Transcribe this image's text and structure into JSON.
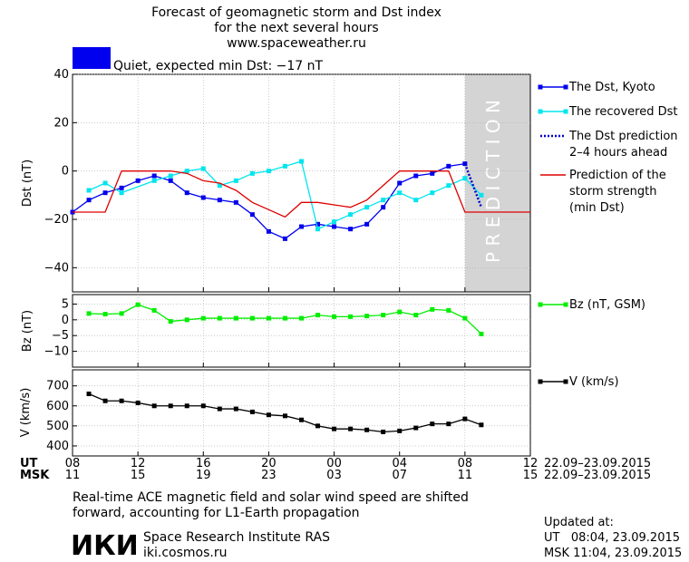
{
  "header": {
    "title_line1": "Forecast of geomagnetic storm and Dst index",
    "title_line2": "for the next several hours",
    "url": "www.spaceweather.ru",
    "status_text": "Quiet, expected min Dst: −17 nT",
    "status_color": "#0000ee"
  },
  "prediction_band_label": "P R E D I C T I O N",
  "legends": {
    "dst": [
      {
        "key": "kyoto",
        "label_lines": [
          "The Dst, Kyoto"
        ],
        "color": "#0000ee"
      },
      {
        "key": "recovered",
        "label_lines": [
          "The recovered Dst"
        ],
        "color": "#00e5ee"
      },
      {
        "key": "dst_pred",
        "label_lines": [
          "The Dst prediction",
          "2–4 hours ahead"
        ],
        "color": "#0000cc"
      },
      {
        "key": "storm",
        "label_lines": [
          "Prediction of the",
          "storm strength",
          "(min Dst)"
        ],
        "color": "#dd0000"
      }
    ],
    "bz": {
      "label": "Bz (nT, GSM)",
      "color": "#00ee00"
    },
    "v": {
      "label": "V (km/s)",
      "color": "#000000"
    }
  },
  "time_axis": {
    "ut_label": "UT",
    "msk_label": "MSK",
    "ut_ticks": [
      "08",
      "12",
      "16",
      "20",
      "00",
      "04",
      "08",
      "12"
    ],
    "msk_ticks": [
      "11",
      "15",
      "19",
      "23",
      "03",
      "07",
      "11",
      "15"
    ],
    "date_range_ut": "22.09–23.09.2015",
    "date_range_msk": "22.09–23.09.2015"
  },
  "footer": {
    "note_line1": "Real-time ACE magnetic field and solar wind speed are shifted",
    "note_line2": "forward, accounting for L1-Earth propagation",
    "logo_text": "ИКИ",
    "institute": "Space Research Institute RAS",
    "site": "iki.cosmos.ru",
    "updated_label": "Updated at:",
    "updated_ut": "UT   08:04, 23.09.2015",
    "updated_msk": "MSK 11:04, 23.09.2015"
  },
  "chart_data": [
    {
      "type": "line",
      "panel": "dst",
      "ylabel": "Dst (nT)",
      "xlim": [
        0,
        28
      ],
      "ylim": [
        -50,
        40
      ],
      "yticks": [
        -40,
        -20,
        0,
        20,
        40
      ],
      "prediction_band": [
        24,
        28
      ],
      "series": [
        {
          "key": "kyoto",
          "name": "The Dst, Kyoto",
          "color": "#0000ee",
          "marker": "square",
          "x": [
            0,
            1,
            2,
            3,
            4,
            5,
            6,
            7,
            8,
            9,
            10,
            11,
            12,
            13,
            14,
            15,
            16,
            17,
            18,
            19,
            20,
            21,
            22,
            23,
            24
          ],
          "y": [
            -17,
            -12,
            -9,
            -7,
            -4,
            -2,
            -4,
            -9,
            -11,
            -12,
            -13,
            -18,
            -25,
            -28,
            -23,
            -22,
            -23,
            -24,
            -22,
            -15,
            -5,
            -2,
            -1,
            2,
            3
          ]
        },
        {
          "key": "recovered",
          "name": "The recovered Dst",
          "color": "#00e5ee",
          "marker": "square",
          "x": [
            1,
            2,
            3,
            5,
            6,
            7,
            8,
            9,
            10,
            11,
            12,
            13,
            14,
            15,
            16,
            17,
            18,
            19,
            20,
            21,
            22,
            23,
            24,
            25
          ],
          "y": [
            -8,
            -5,
            -9,
            -4,
            -2,
            0,
            1,
            -6,
            -4,
            -1,
            0,
            2,
            4,
            -24,
            -21,
            -18,
            -15,
            -12,
            -9,
            -12,
            -9,
            -6,
            -3,
            -10
          ]
        },
        {
          "key": "dst_pred",
          "name": "The Dst prediction 2–4 hours ahead",
          "color": "#0000cc",
          "dotted": true,
          "x": [
            24,
            24.5,
            25
          ],
          "y": [
            3,
            -6,
            -15
          ]
        },
        {
          "key": "storm",
          "name": "Prediction of the storm strength (min Dst)",
          "color": "#dd0000",
          "x": [
            0,
            2,
            3,
            4,
            5,
            6,
            7,
            8,
            9,
            10,
            11,
            12,
            13,
            14,
            15,
            16,
            17,
            18,
            19,
            20,
            21,
            22,
            23,
            24,
            25,
            26,
            27,
            28
          ],
          "y": [
            -17,
            -17,
            0,
            0,
            0,
            0,
            -1,
            -4,
            -5,
            -8,
            -13,
            -16,
            -19,
            -13,
            -13,
            -14,
            -15,
            -12,
            -6,
            0,
            0,
            0,
            0,
            -17,
            -17,
            -17,
            -17,
            -17
          ]
        }
      ]
    },
    {
      "type": "line",
      "panel": "bz",
      "ylabel": "Bz (nT)",
      "xlim": [
        0,
        28
      ],
      "ylim": [
        -15,
        8
      ],
      "yticks": [
        -10,
        -5,
        0,
        5
      ],
      "series": [
        {
          "key": "bz",
          "name": "Bz (nT, GSM)",
          "color": "#00ee00",
          "marker": "square",
          "x": [
            1,
            2,
            3,
            4,
            5,
            6,
            7,
            8,
            9,
            10,
            11,
            12,
            13,
            14,
            15,
            16,
            17,
            18,
            19,
            20,
            21,
            22,
            23,
            24,
            25
          ],
          "y": [
            2,
            1.8,
            2,
            4.8,
            3,
            -0.5,
            0,
            0.5,
            0.5,
            0.5,
            0.5,
            0.5,
            0.5,
            0.5,
            1.5,
            1,
            1,
            1.2,
            1.5,
            2.5,
            1.5,
            3.3,
            3,
            0.5,
            -4.5
          ]
        }
      ]
    },
    {
      "type": "line",
      "panel": "v",
      "ylabel": "V (km/s)",
      "xlim": [
        0,
        28
      ],
      "ylim": [
        350,
        780
      ],
      "yticks": [
        400,
        500,
        600,
        700
      ],
      "series": [
        {
          "key": "v",
          "name": "V (km/s)",
          "color": "#000000",
          "marker": "square",
          "x": [
            1,
            2,
            3,
            4,
            5,
            6,
            7,
            8,
            9,
            10,
            11,
            12,
            13,
            14,
            15,
            16,
            17,
            18,
            19,
            20,
            21,
            22,
            23,
            24,
            25
          ],
          "y": [
            660,
            625,
            625,
            615,
            600,
            600,
            600,
            600,
            585,
            585,
            570,
            555,
            550,
            530,
            500,
            485,
            485,
            480,
            470,
            475,
            490,
            510,
            510,
            535,
            505
          ]
        }
      ]
    }
  ]
}
